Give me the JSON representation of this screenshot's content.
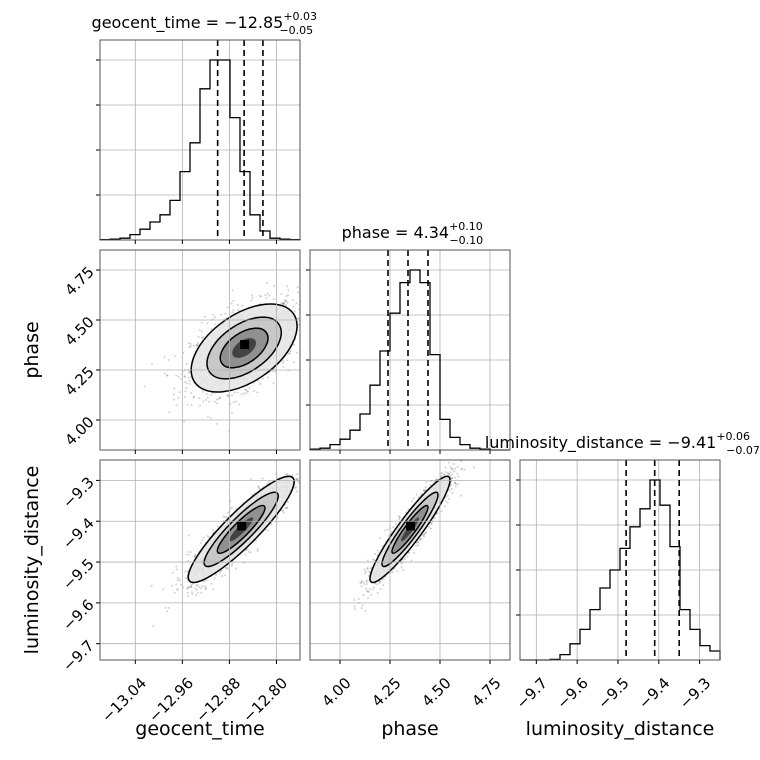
{
  "chart_data": {
    "type": "corner",
    "parameters": [
      {
        "name": "geocent_time",
        "title_prefix": "geocent_time = ",
        "median": "−12.85",
        "upper": "+0.03",
        "lower": "−0.05",
        "range": [
          -13.1,
          -12.76
        ],
        "ticks": [
          -13.04,
          -12.96,
          -12.88,
          -12.8
        ],
        "tick_labels": [
          "−13.04",
          "−12.96",
          "−12.88",
          "−12.80"
        ],
        "quantiles": [
          -12.9,
          -12.855,
          -12.823
        ],
        "hist_edges": [
          -13.1,
          -13.083,
          -13.066,
          -13.049,
          -13.032,
          -13.015,
          -12.998,
          -12.981,
          -12.964,
          -12.947,
          -12.93,
          -12.913,
          -12.896,
          -12.879,
          -12.862,
          -12.845,
          -12.828,
          -12.811,
          -12.794,
          -12.777,
          -12.76
        ],
        "hist_counts": [
          0.2,
          0.5,
          1,
          3,
          6,
          10,
          14,
          22,
          38,
          54,
          84,
          100,
          100,
          68,
          38,
          14,
          5,
          1,
          0.5,
          0.2
        ]
      },
      {
        "name": "phase",
        "title_prefix": "phase = ",
        "median": "4.34",
        "upper": "+0.10",
        "lower": "−0.10",
        "range": [
          3.85,
          4.85
        ],
        "ticks": [
          4.0,
          4.25,
          4.5,
          4.75
        ],
        "tick_labels": [
          "4.00",
          "4.25",
          "4.50",
          "4.75"
        ],
        "quantiles": [
          4.24,
          4.34,
          4.44
        ],
        "hist_edges": [
          3.85,
          3.9,
          3.95,
          4.0,
          4.05,
          4.1,
          4.15,
          4.2,
          4.25,
          4.3,
          4.35,
          4.4,
          4.45,
          4.5,
          4.55,
          4.6,
          4.65,
          4.7,
          4.75,
          4.8,
          4.85
        ],
        "hist_counts": [
          0.5,
          1,
          3,
          6,
          11,
          20,
          36,
          55,
          76,
          93,
          100,
          93,
          53,
          17,
          7,
          3,
          1,
          0.5,
          0,
          0
        ]
      },
      {
        "name": "luminosity_distance",
        "title_prefix": "luminosity_distance = ",
        "median": "−9.41",
        "upper": "+0.06",
        "lower": "−0.07",
        "range": [
          -9.74,
          -9.25
        ],
        "ticks": [
          -9.7,
          -9.6,
          -9.5,
          -9.4,
          -9.3
        ],
        "tick_labels": [
          "−9.7",
          "−9.6",
          "−9.5",
          "−9.4",
          "−9.3"
        ],
        "quantiles": [
          -9.48,
          -9.41,
          -9.35
        ],
        "hist_edges": [
          -9.74,
          -9.7155,
          -9.691,
          -9.6665,
          -9.642,
          -9.6175,
          -9.593,
          -9.5685,
          -9.544,
          -9.5195,
          -9.495,
          -9.4705,
          -9.446,
          -9.4215,
          -9.397,
          -9.3725,
          -9.348,
          -9.3235,
          -9.299,
          -9.2745,
          -9.25
        ],
        "hist_counts": [
          0,
          0,
          0,
          0.3,
          3,
          9,
          17,
          28,
          40,
          50,
          62,
          74,
          84,
          100,
          86,
          63,
          28,
          17,
          8,
          5
        ]
      }
    ],
    "pairs": [
      {
        "x": "geocent_time",
        "y": "phase",
        "centroid": [
          -12.855,
          4.36
        ],
        "spread": [
          0.045,
          0.11
        ],
        "correlation": 0.5
      },
      {
        "x": "geocent_time",
        "y": "luminosity_distance",
        "centroid": [
          -12.86,
          -9.42
        ],
        "spread": [
          0.045,
          0.065
        ],
        "correlation": 0.9
      },
      {
        "x": "phase",
        "y": "luminosity_distance",
        "centroid": [
          4.35,
          -9.42
        ],
        "spread": [
          0.1,
          0.065
        ],
        "correlation": 0.93
      }
    ],
    "grid": true,
    "quantile_lines": "dashed"
  }
}
